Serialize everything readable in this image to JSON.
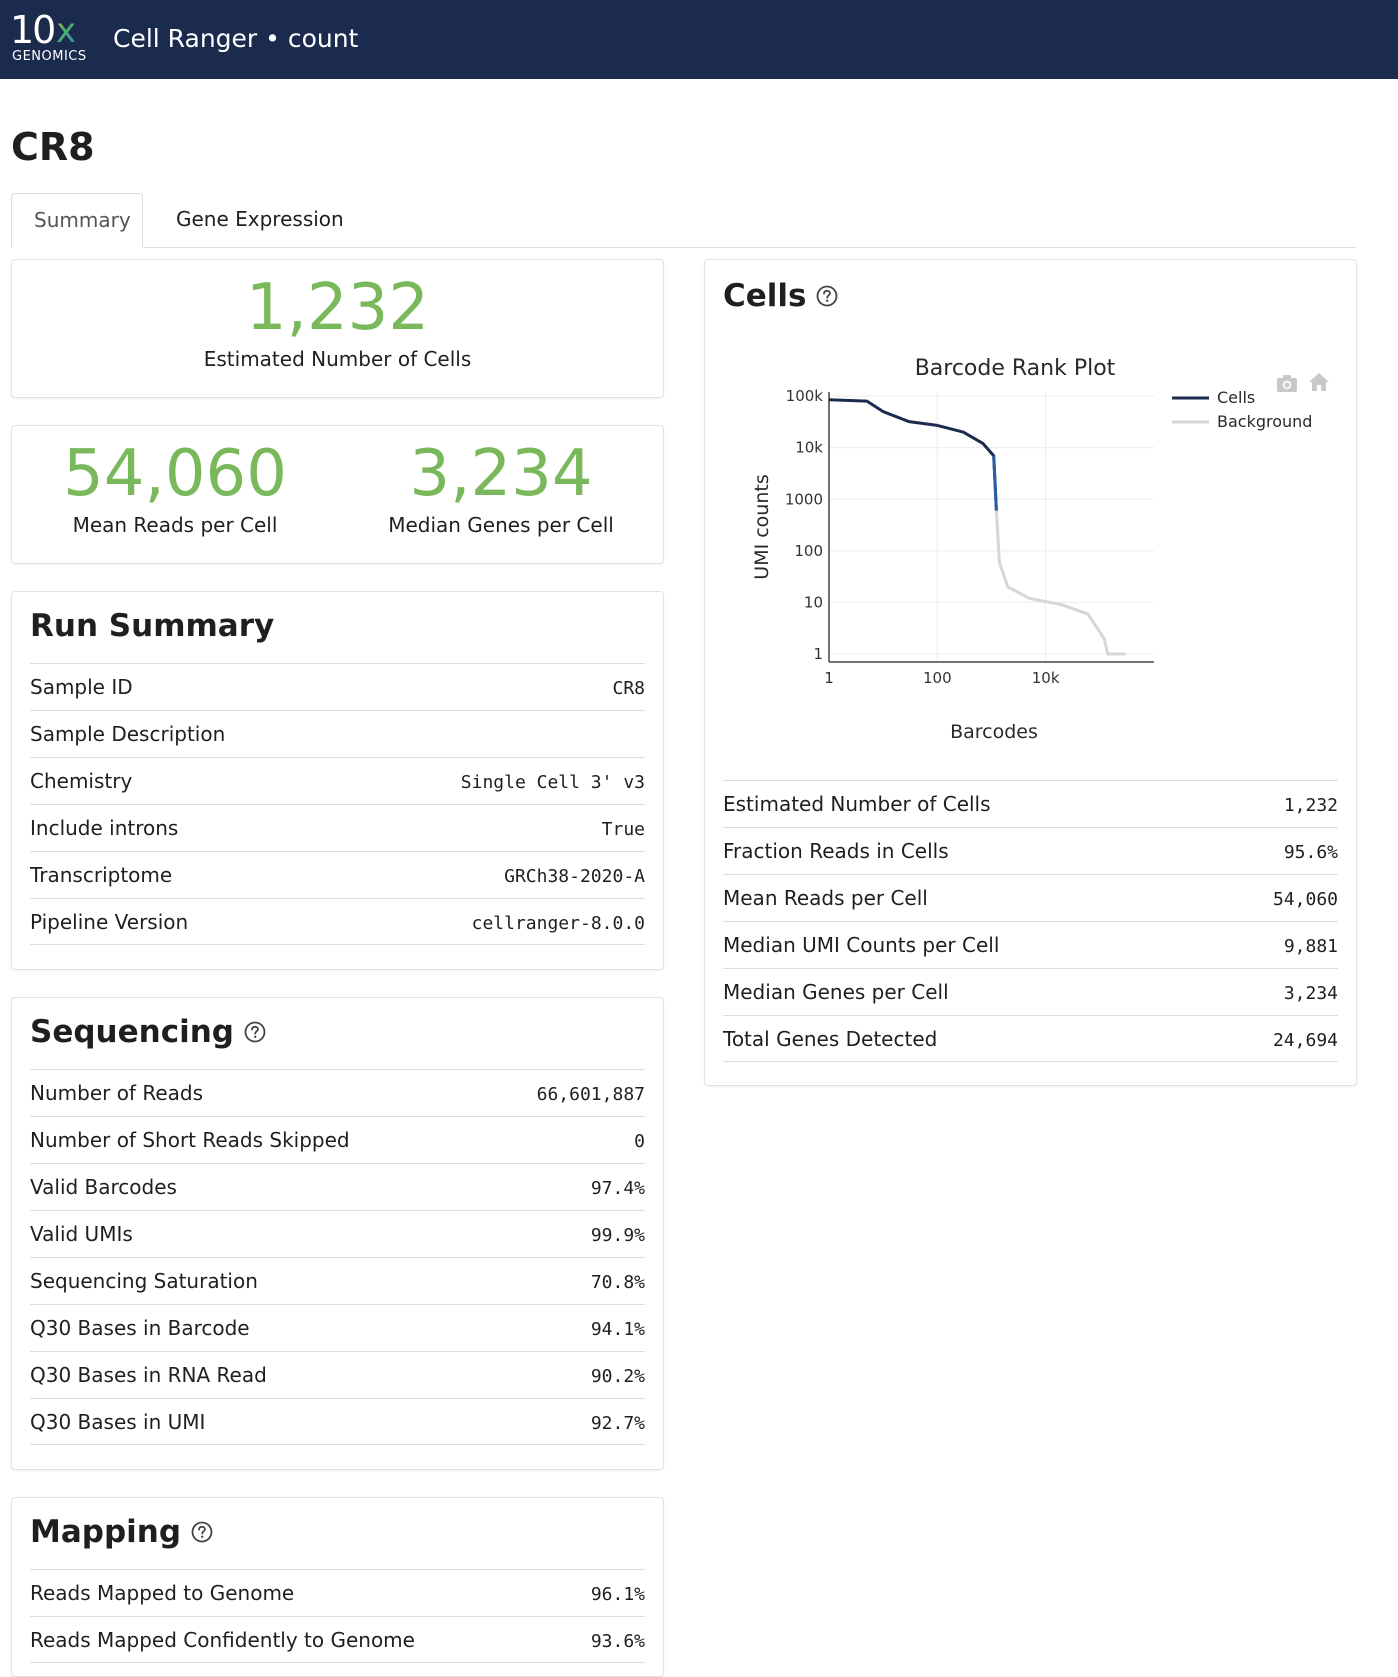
{
  "header": {
    "logo_number": "10",
    "logo_x": "x",
    "logo_sub": "GENOMICS",
    "app_title": "Cell Ranger • count"
  },
  "sample": {
    "title": "CR8"
  },
  "tabs": [
    {
      "label": "Summary",
      "active": true
    },
    {
      "label": "Gene Expression",
      "active": false
    }
  ],
  "hero": {
    "cells": {
      "value": "1,232",
      "label": "Estimated Number of Cells"
    },
    "reads": {
      "value": "54,060",
      "label": "Mean Reads per Cell"
    },
    "genes": {
      "value": "3,234",
      "label": "Median Genes per Cell"
    },
    "accent_color": "#7ab85c"
  },
  "run_summary": {
    "heading": "Run Summary",
    "rows": [
      {
        "key": "Sample ID",
        "value": "CR8"
      },
      {
        "key": "Sample Description",
        "value": ""
      },
      {
        "key": "Chemistry",
        "value": "Single Cell 3' v3"
      },
      {
        "key": "Include introns",
        "value": "True"
      },
      {
        "key": "Transcriptome",
        "value": "GRCh38-2020-A"
      },
      {
        "key": "Pipeline Version",
        "value": "cellranger-8.0.0"
      }
    ]
  },
  "sequencing": {
    "heading": "Sequencing",
    "rows": [
      {
        "key": "Number of Reads",
        "value": "66,601,887"
      },
      {
        "key": "Number of Short Reads Skipped",
        "value": "0"
      },
      {
        "key": "Valid Barcodes",
        "value": "97.4%"
      },
      {
        "key": "Valid UMIs",
        "value": "99.9%"
      },
      {
        "key": "Sequencing Saturation",
        "value": "70.8%"
      },
      {
        "key": "Q30 Bases in Barcode",
        "value": "94.1%"
      },
      {
        "key": "Q30 Bases in RNA Read",
        "value": "90.2%"
      },
      {
        "key": "Q30 Bases in UMI",
        "value": "92.7%"
      }
    ]
  },
  "mapping": {
    "heading": "Mapping",
    "rows": [
      {
        "key": "Reads Mapped to Genome",
        "value": "96.1%"
      },
      {
        "key": "Reads Mapped Confidently to Genome",
        "value": "93.6%"
      }
    ]
  },
  "cells": {
    "heading": "Cells",
    "rows": [
      {
        "key": "Estimated Number of Cells",
        "value": "1,232"
      },
      {
        "key": "Fraction Reads in Cells",
        "value": "95.6%"
      },
      {
        "key": "Mean Reads per Cell",
        "value": "54,060"
      },
      {
        "key": "Median UMI Counts per Cell",
        "value": "9,881"
      },
      {
        "key": "Median Genes per Cell",
        "value": "3,234"
      },
      {
        "key": "Total Genes Detected",
        "value": "24,694"
      }
    ]
  },
  "plot_toolbar": {
    "camera": "camera-icon",
    "home": "home-icon"
  },
  "chart_data": {
    "type": "line",
    "title": "Barcode Rank Plot",
    "xlabel": "Barcodes",
    "ylabel": "UMI counts",
    "x_scale": "log",
    "y_scale": "log",
    "x_ticks": [
      "1",
      "100",
      "10k"
    ],
    "y_ticks": [
      "100k",
      "10k",
      "1000",
      "100",
      "10",
      "1"
    ],
    "xlim": [
      1,
      1000000
    ],
    "ylim": [
      0.7,
      120000
    ],
    "grid": true,
    "legend_position": "top-right",
    "series": [
      {
        "name": "Cells",
        "color": "#1b2b4d",
        "segment_color": "#2b5ca8",
        "points": [
          [
            1,
            85000
          ],
          [
            5,
            80000
          ],
          [
            10,
            50000
          ],
          [
            30,
            32000
          ],
          [
            100,
            27000
          ],
          [
            300,
            20000
          ],
          [
            700,
            12000
          ],
          [
            1100,
            7000
          ],
          [
            1232,
            600
          ]
        ]
      },
      {
        "name": "Background",
        "color": "#d6d6d6",
        "points": [
          [
            1232,
            600
          ],
          [
            1400,
            60
          ],
          [
            2000,
            20
          ],
          [
            5000,
            12
          ],
          [
            20000,
            9
          ],
          [
            60000,
            6
          ],
          [
            120000,
            2
          ],
          [
            140000,
            1
          ],
          [
            300000,
            1
          ]
        ]
      }
    ]
  }
}
